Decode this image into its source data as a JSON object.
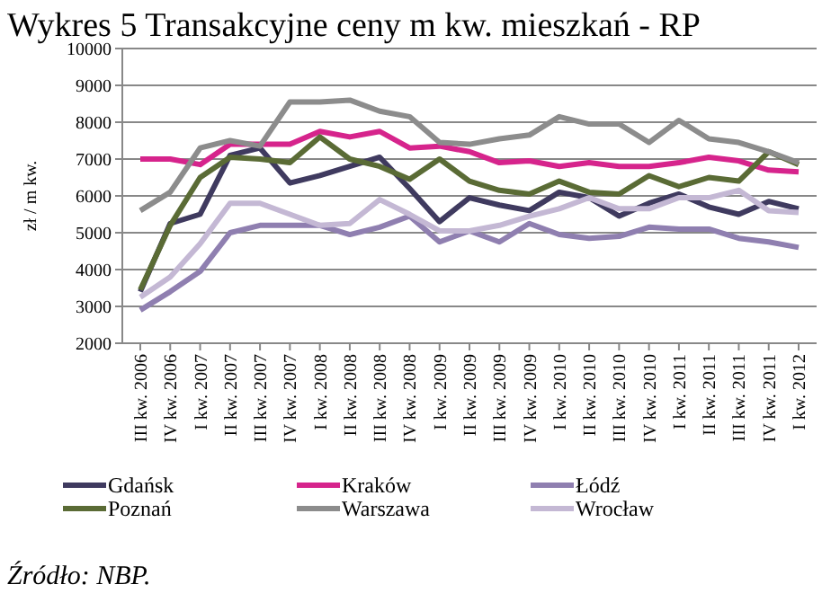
{
  "chart_data": {
    "type": "line",
    "title": "Wykres 5 Transakcyjne ceny m kw. mieszkań - RP",
    "ylabel": "zł / m kw.",
    "annotations": [
      "Źródło: NBP."
    ],
    "categories": [
      "III kw. 2006",
      "IV kw. 2006",
      "I kw. 2007",
      "II kw. 2007",
      "III kw. 2007",
      "IV kw. 2007",
      "I kw. 2008",
      "II kw. 2008",
      "III kw. 2008",
      "IV kw. 2008",
      "I kw. 2009",
      "II kw. 2009",
      "III kw. 2009",
      "IV kw. 2009",
      "I kw. 2010",
      "II kw. 2010",
      "III kw. 2010",
      "IV kw. 2010",
      "I kw. 2011",
      "II kw. 2011",
      "III kw. 2011",
      "IV kw. 2011",
      "I kw. 2012"
    ],
    "series": [
      {
        "name": "Gdańsk",
        "color": "#3f3a5f",
        "values": [
          3400,
          5250,
          5500,
          7100,
          7300,
          6350,
          6550,
          6800,
          7050,
          6200,
          5300,
          5950,
          5750,
          5600,
          6100,
          5950,
          5450,
          5800,
          6050,
          5700,
          5500,
          5850,
          5650
        ]
      },
      {
        "name": "Kraków",
        "color": "#d6248c",
        "values": [
          7000,
          7000,
          6850,
          7400,
          7400,
          7400,
          7750,
          7600,
          7750,
          7300,
          7350,
          7200,
          6900,
          6950,
          6800,
          6900,
          6800,
          6800,
          6900,
          7050,
          6950,
          6700,
          6650
        ]
      },
      {
        "name": "Łódź",
        "color": "#8f7fb0",
        "values": [
          2900,
          3400,
          3950,
          5000,
          5200,
          5200,
          5200,
          4950,
          5150,
          5450,
          4750,
          5050,
          4750,
          5250,
          4950,
          4850,
          4900,
          5150,
          5100,
          5100,
          4850,
          4750,
          4600
        ]
      },
      {
        "name": "Poznań",
        "color": "#5a6b35",
        "values": [
          3450,
          5200,
          6500,
          7050,
          7000,
          6900,
          7600,
          7000,
          6800,
          6450,
          7000,
          6400,
          6150,
          6050,
          6400,
          6100,
          6050,
          6550,
          6250,
          6500,
          6400,
          7200,
          6850
        ]
      },
      {
        "name": "Warszawa",
        "color": "#8c8c8c",
        "values": [
          5600,
          6100,
          7300,
          7500,
          7350,
          8550,
          8550,
          8600,
          8300,
          8150,
          7450,
          7400,
          7550,
          7650,
          8150,
          7950,
          7950,
          7450,
          8050,
          7550,
          7450,
          7200,
          6900
        ]
      },
      {
        "name": "Wrocław",
        "color": "#c4b8d4",
        "values": [
          3250,
          3800,
          4700,
          5800,
          5800,
          5500,
          5200,
          5250,
          5900,
          5500,
          5050,
          5050,
          5200,
          5450,
          5650,
          5950,
          5650,
          5650,
          5950,
          5950,
          6150,
          5600,
          5550
        ]
      }
    ],
    "ylim": [
      2000,
      10000
    ],
    "yticks": [
      2000,
      3000,
      4000,
      5000,
      6000,
      7000,
      8000,
      9000,
      10000
    ],
    "grid": "y",
    "legend": "bottom",
    "marker": "none",
    "line_style": "solid"
  }
}
